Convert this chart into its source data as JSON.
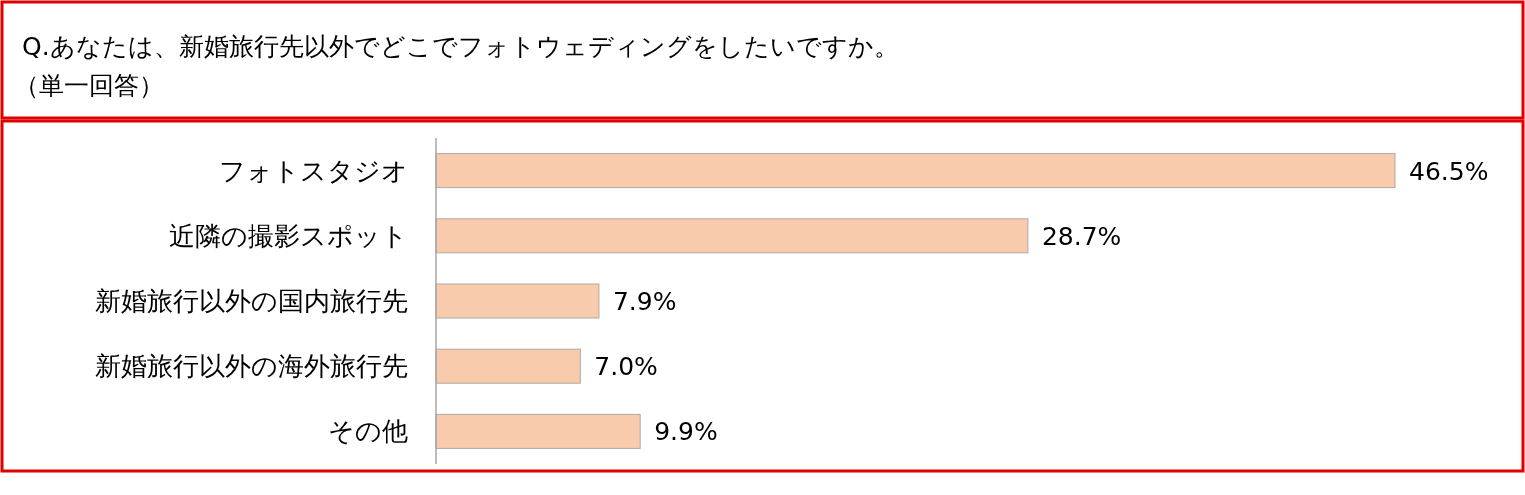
{
  "chart_data": {
    "type": "bar",
    "orientation": "horizontal",
    "title": "Q.あなたは、新婚旅行先以外でどこでフォトウェディングをしたいですか。",
    "subtitle": "（単一回答）",
    "categories": [
      "フォトスタジオ",
      "近隣の撮影スポット",
      "新婚旅行以外の国内旅行先",
      "新婚旅行以外の海外旅行先",
      "その他"
    ],
    "values": [
      46.5,
      28.7,
      7.9,
      7.0,
      9.9
    ],
    "value_labels": [
      "46.5%",
      "28.7%",
      "7.9%",
      "7.0%",
      "9.9%"
    ],
    "color": "#f8cbad"
  }
}
